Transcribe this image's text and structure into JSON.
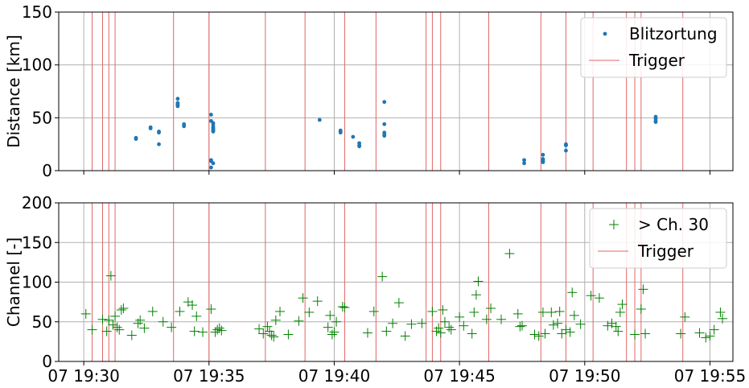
{
  "chart_data": [
    {
      "type": "scatter",
      "ylabel": "Distance [km]",
      "ylim": [
        0,
        150
      ],
      "yticks": [
        0,
        50,
        100,
        150
      ],
      "xlim": [
        "19:29:00",
        "19:55:55"
      ],
      "grid": true,
      "legend_position": "top-right",
      "legend": [
        "Blitzortung",
        "Trigger"
      ],
      "series": [
        {
          "name": "Blitzortung",
          "color": "#1f77b4",
          "marker": "dot",
          "x": [
            "19:32:05",
            "19:32:05",
            "19:32:40",
            "19:32:40",
            "19:33:00",
            "19:33:00",
            "19:33:00",
            "19:33:45",
            "19:33:45",
            "19:33:45",
            "19:33:45",
            "19:33:45",
            "19:34:00",
            "19:34:00",
            "19:35:05",
            "19:35:05",
            "19:35:05",
            "19:35:05",
            "19:35:05",
            "19:35:10",
            "19:35:10",
            "19:35:10",
            "19:35:10",
            "19:35:10",
            "19:35:10",
            "19:35:10",
            "19:35:10",
            "19:35:10",
            "19:39:25",
            "19:40:15",
            "19:40:15",
            "19:40:15",
            "19:40:45",
            "19:41:00",
            "19:41:00",
            "19:41:00",
            "19:42:00",
            "19:42:00",
            "19:42:00",
            "19:42:00",
            "19:42:00",
            "19:47:35",
            "19:47:35",
            "19:48:20",
            "19:48:20",
            "19:48:20",
            "19:48:20",
            "19:48:20",
            "19:49:15",
            "19:49:15",
            "19:49:15",
            "19:49:15",
            "19:52:50",
            "19:52:50",
            "19:52:50",
            "19:52:50"
          ],
          "y": [
            31,
            30,
            40,
            41,
            36,
            37,
            25,
            68,
            64,
            63,
            62,
            61,
            42,
            44,
            10,
            9,
            3,
            53,
            47,
            45,
            43,
            41,
            40,
            39,
            38,
            37,
            38,
            7,
            48,
            37,
            38,
            36,
            32,
            26,
            24,
            23,
            65,
            44,
            36,
            34,
            33,
            10,
            7,
            15,
            11,
            10,
            9,
            8,
            24,
            25,
            19,
            24,
            51,
            49,
            47,
            46
          ]
        }
      ],
      "trigger_times": [
        "19:30:20",
        "19:30:45",
        "19:31:00",
        "19:31:15",
        "19:33:35",
        "19:35:00",
        "19:37:15",
        "19:38:50",
        "19:40:25",
        "19:41:40",
        "19:43:40",
        "19:43:55",
        "19:44:15",
        "19:46:10",
        "19:48:15",
        "19:49:15",
        "19:50:20",
        "19:51:40",
        "19:52:00",
        "19:52:15",
        "19:53:55"
      ]
    },
    {
      "type": "scatter",
      "ylabel": "Channel [-]",
      "ylim": [
        0,
        200
      ],
      "yticks": [
        0,
        50,
        100,
        150,
        200
      ],
      "xlim": [
        "19:29:00",
        "19:55:55"
      ],
      "xtick_labels": [
        "07 19:30",
        "07 19:35",
        "07 19:40",
        "07 19:45",
        "07 19:50",
        "07 19:55"
      ],
      "xtick_times": [
        "19:30:00",
        "19:35:00",
        "19:40:00",
        "19:45:00",
        "19:50:00",
        "19:55:00"
      ],
      "grid": true,
      "legend_position": "top-right",
      "legend": [
        "> Ch. 30",
        "Trigger"
      ],
      "series": [
        {
          "name": "> Ch. 30",
          "color": "#008000",
          "marker": "plus",
          "x": [
            "19:30:05",
            "19:30:20",
            "19:30:45",
            "19:30:55",
            "19:31:00",
            "19:31:05",
            "19:31:10",
            "19:31:15",
            "19:31:20",
            "19:31:25",
            "19:31:30",
            "19:31:35",
            "19:31:55",
            "19:32:10",
            "19:32:15",
            "19:32:25",
            "19:32:45",
            "19:33:10",
            "19:33:30",
            "19:33:50",
            "19:34:10",
            "19:34:20",
            "19:34:25",
            "19:34:30",
            "19:34:45",
            "19:35:05",
            "19:35:15",
            "19:35:20",
            "19:35:25",
            "19:35:30",
            "19:37:00",
            "19:37:10",
            "19:37:20",
            "19:37:25",
            "19:37:30",
            "19:37:35",
            "19:37:40",
            "19:37:50",
            "19:38:10",
            "19:38:35",
            "19:38:45",
            "19:39:00",
            "19:39:20",
            "19:39:45",
            "19:39:50",
            "19:39:55",
            "19:40:00",
            "19:40:05",
            "19:40:20",
            "19:40:25",
            "19:41:20",
            "19:41:35",
            "19:41:55",
            "19:42:05",
            "19:42:20",
            "19:42:35",
            "19:42:50",
            "19:43:05",
            "19:43:30",
            "19:43:55",
            "19:44:05",
            "19:44:10",
            "19:44:15",
            "19:44:20",
            "19:44:25",
            "19:44:35",
            "19:44:40",
            "19:45:00",
            "19:45:10",
            "19:45:30",
            "19:45:35",
            "19:45:40",
            "19:45:45",
            "19:46:05",
            "19:46:15",
            "19:46:40",
            "19:47:00",
            "19:47:20",
            "19:47:25",
            "19:47:30",
            "19:48:00",
            "19:48:10",
            "19:48:20",
            "19:48:25",
            "19:48:40",
            "19:48:45",
            "19:48:55",
            "19:49:00",
            "19:49:05",
            "19:49:15",
            "19:49:25",
            "19:49:30",
            "19:49:35",
            "19:49:50",
            "19:50:15",
            "19:50:35",
            "19:50:55",
            "19:51:05",
            "19:51:15",
            "19:51:20",
            "19:51:25",
            "19:51:30",
            "19:52:00",
            "19:52:15",
            "19:52:20",
            "19:52:25",
            "19:53:50",
            "19:54:00",
            "19:54:35",
            "19:54:50",
            "19:55:00",
            "19:55:10",
            "19:55:25",
            "19:55:30"
          ],
          "y": [
            60,
            40,
            53,
            38,
            52,
            108,
            46,
            57,
            43,
            40,
            65,
            67,
            33,
            48,
            52,
            42,
            63,
            50,
            43,
            63,
            75,
            71,
            38,
            57,
            37,
            66,
            37,
            40,
            42,
            39,
            41,
            35,
            44,
            38,
            33,
            31,
            52,
            63,
            34,
            51,
            80,
            62,
            76,
            43,
            58,
            34,
            37,
            50,
            69,
            68,
            36,
            63,
            107,
            38,
            48,
            74,
            32,
            47,
            48,
            63,
            38,
            42,
            36,
            65,
            50,
            43,
            40,
            56,
            45,
            35,
            62,
            84,
            101,
            53,
            67,
            53,
            136,
            60,
            44,
            45,
            34,
            32,
            62,
            35,
            62,
            46,
            48,
            63,
            35,
            40,
            37,
            87,
            58,
            47,
            83,
            80,
            45,
            48,
            44,
            38,
            62,
            72,
            34,
            66,
            91,
            35,
            35,
            56,
            36,
            30,
            32,
            40,
            62,
            54
          ],
          "y_clamped_note": ""
        }
      ],
      "trigger_times": [
        "19:30:20",
        "19:30:45",
        "19:31:00",
        "19:31:15",
        "19:33:35",
        "19:35:00",
        "19:37:15",
        "19:38:50",
        "19:40:25",
        "19:41:40",
        "19:43:40",
        "19:43:55",
        "19:44:15",
        "19:46:10",
        "19:48:15",
        "19:49:15",
        "19:50:20",
        "19:51:40",
        "19:52:00",
        "19:52:15",
        "19:53:55"
      ]
    }
  ],
  "colors": {
    "trigger": "#e06666",
    "grid": "#b0b0b0",
    "blitz": "#1f77b4",
    "channel": "#008000"
  }
}
